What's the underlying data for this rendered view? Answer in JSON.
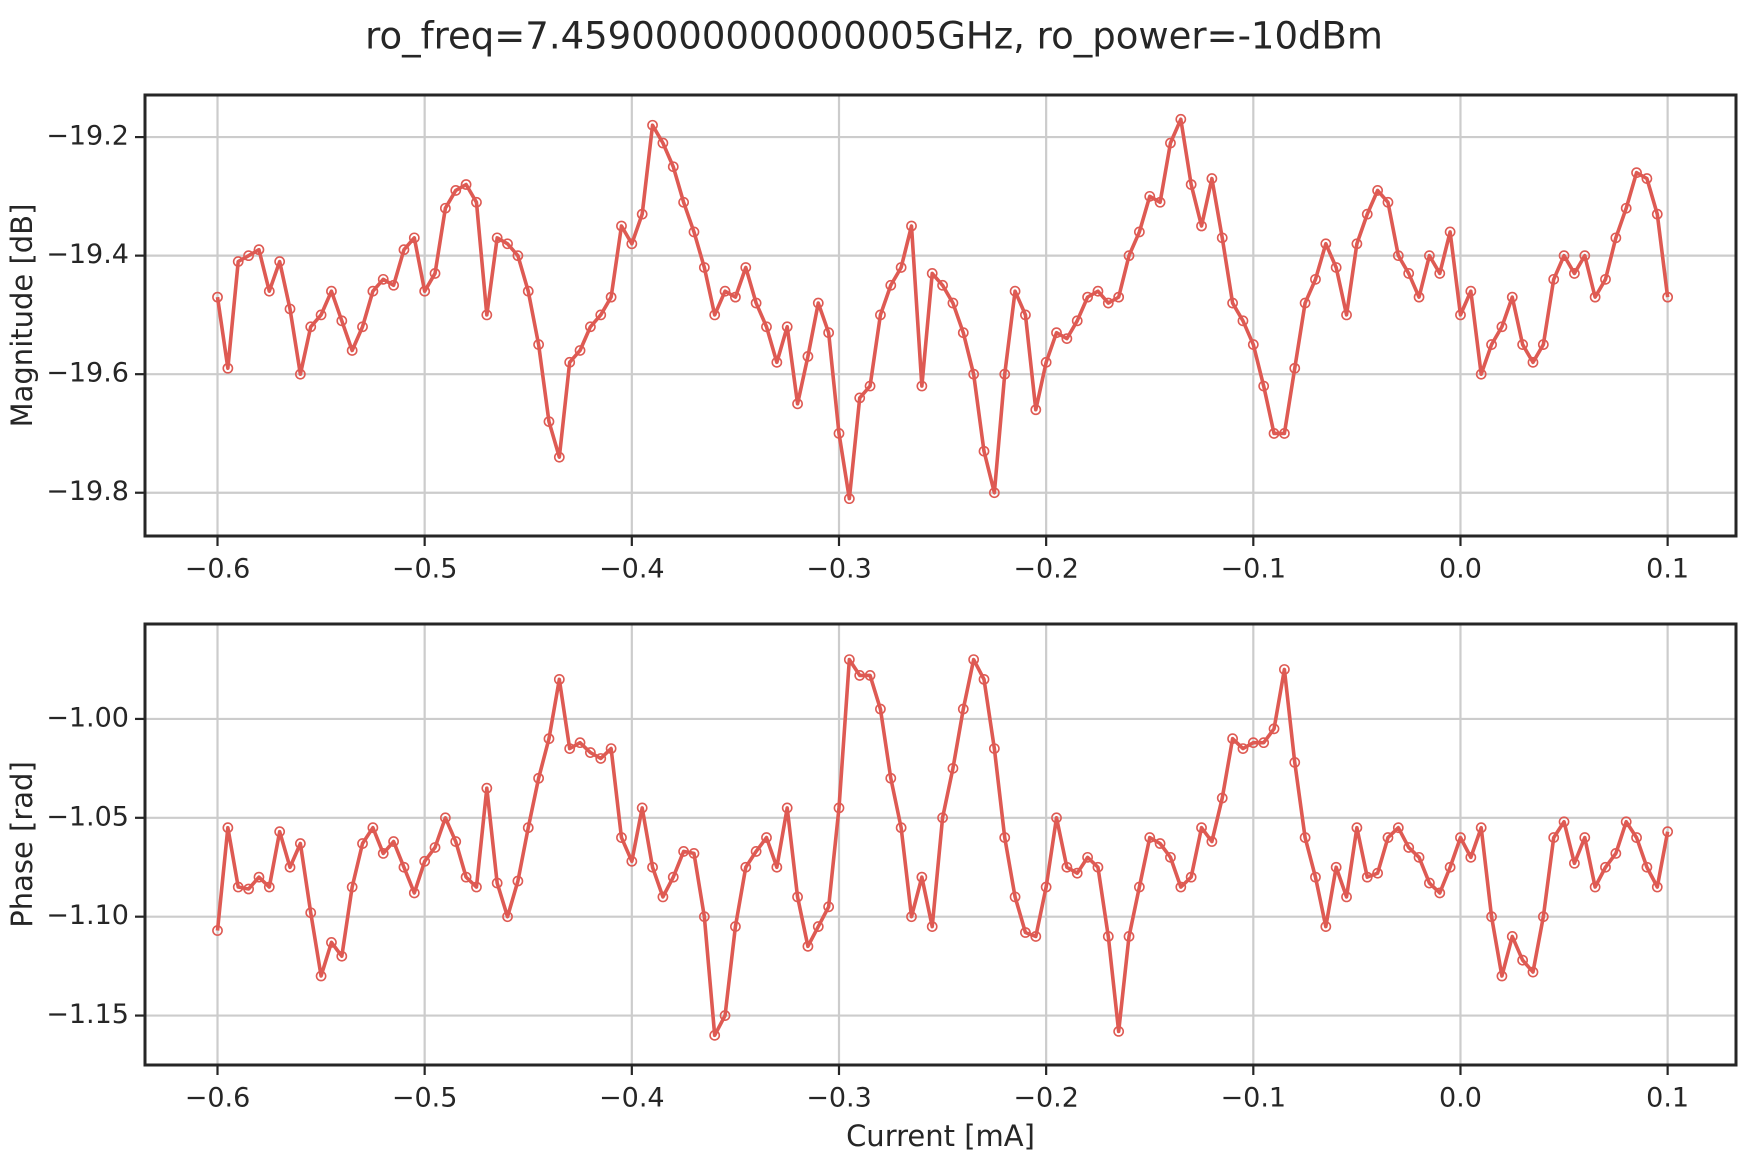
{
  "title": "ro_freq=7.4590000000000005GHz, ro_power=-10dBm",
  "chart_data": [
    {
      "type": "line",
      "ylabel": "Magnitude [dB]",
      "color": "#de5a53",
      "grid": true,
      "marker": "open-circle",
      "xlim": [
        -0.635,
        0.133
      ],
      "ylim": [
        -19.873,
        -19.129
      ],
      "xticks": [
        {
          "value": -0.6,
          "label": "−0.6"
        },
        {
          "value": -0.5,
          "label": "−0.5"
        },
        {
          "value": -0.4,
          "label": "−0.4"
        },
        {
          "value": -0.3,
          "label": "−0.3"
        },
        {
          "value": -0.2,
          "label": "−0.2"
        },
        {
          "value": -0.1,
          "label": "−0.1"
        },
        {
          "value": 0,
          "label": "0.0"
        },
        {
          "value": 0.1,
          "label": "0.1"
        }
      ],
      "yticks": [
        {
          "value": -19.8,
          "label": "−19.8"
        },
        {
          "value": -19.6,
          "label": "−19.6"
        },
        {
          "value": -19.4,
          "label": "−19.4"
        },
        {
          "value": -19.2,
          "label": "−19.2"
        }
      ],
      "x": [
        -0.6,
        -0.595,
        -0.59,
        -0.585,
        -0.58,
        -0.575,
        -0.57,
        -0.565,
        -0.56,
        -0.555,
        -0.55,
        -0.545,
        -0.54,
        -0.535,
        -0.53,
        -0.525,
        -0.52,
        -0.515,
        -0.51,
        -0.505,
        -0.5,
        -0.495,
        -0.49,
        -0.485,
        -0.48,
        -0.475,
        -0.47,
        -0.465,
        -0.46,
        -0.455,
        -0.45,
        -0.445,
        -0.44,
        -0.435,
        -0.43,
        -0.425,
        -0.42,
        -0.415,
        -0.41,
        -0.405,
        -0.4,
        -0.395,
        -0.39,
        -0.385,
        -0.38,
        -0.375,
        -0.37,
        -0.365,
        -0.36,
        -0.355,
        -0.35,
        -0.345,
        -0.34,
        -0.335,
        -0.33,
        -0.325,
        -0.32,
        -0.315,
        -0.31,
        -0.305,
        -0.3,
        -0.295,
        -0.29,
        -0.285,
        -0.28,
        -0.275,
        -0.27,
        -0.265,
        -0.26,
        -0.255,
        -0.25,
        -0.245,
        -0.24,
        -0.235,
        -0.23,
        -0.225,
        -0.22,
        -0.215,
        -0.21,
        -0.205,
        -0.2,
        -0.195,
        -0.19,
        -0.185,
        -0.18,
        -0.175,
        -0.17,
        -0.165,
        -0.16,
        -0.155,
        -0.15,
        -0.145,
        -0.14,
        -0.135,
        -0.13,
        -0.125,
        -0.12,
        -0.115,
        -0.11,
        -0.105,
        -0.1,
        -0.095,
        -0.09,
        -0.085,
        -0.08,
        -0.075,
        -0.07,
        -0.065,
        -0.06,
        -0.055,
        -0.05,
        -0.045,
        -0.04,
        -0.035,
        -0.03,
        -0.025,
        -0.02,
        -0.015,
        -0.01,
        -0.005,
        0,
        0.005,
        0.01,
        0.015,
        0.02,
        0.025,
        0.03,
        0.035,
        0.04,
        0.045,
        0.05,
        0.055,
        0.06,
        0.065,
        0.07,
        0.075,
        0.08,
        0.085,
        0.09,
        0.095,
        0.1
      ],
      "values": [
        -19.47,
        -19.59,
        -19.41,
        -19.4,
        -19.39,
        -19.46,
        -19.41,
        -19.49,
        -19.6,
        -19.52,
        -19.5,
        -19.46,
        -19.51,
        -19.56,
        -19.52,
        -19.46,
        -19.44,
        -19.45,
        -19.39,
        -19.37,
        -19.46,
        -19.43,
        -19.32,
        -19.29,
        -19.28,
        -19.31,
        -19.5,
        -19.37,
        -19.38,
        -19.4,
        -19.46,
        -19.55,
        -19.68,
        -19.74,
        -19.58,
        -19.56,
        -19.52,
        -19.5,
        -19.47,
        -19.35,
        -19.38,
        -19.33,
        -19.18,
        -19.21,
        -19.25,
        -19.31,
        -19.36,
        -19.42,
        -19.5,
        -19.46,
        -19.47,
        -19.42,
        -19.48,
        -19.52,
        -19.58,
        -19.52,
        -19.65,
        -19.57,
        -19.48,
        -19.53,
        -19.7,
        -19.81,
        -19.64,
        -19.62,
        -19.5,
        -19.45,
        -19.42,
        -19.35,
        -19.62,
        -19.43,
        -19.45,
        -19.48,
        -19.53,
        -19.6,
        -19.73,
        -19.8,
        -19.6,
        -19.46,
        -19.5,
        -19.66,
        -19.58,
        -19.53,
        -19.54,
        -19.51,
        -19.47,
        -19.46,
        -19.48,
        -19.47,
        -19.4,
        -19.36,
        -19.3,
        -19.31,
        -19.21,
        -19.17,
        -19.28,
        -19.35,
        -19.27,
        -19.37,
        -19.48,
        -19.51,
        -19.55,
        -19.62,
        -19.7,
        -19.7,
        -19.59,
        -19.48,
        -19.44,
        -19.38,
        -19.42,
        -19.5,
        -19.38,
        -19.33,
        -19.29,
        -19.31,
        -19.4,
        -19.43,
        -19.47,
        -19.4,
        -19.43,
        -19.36,
        -19.5,
        -19.46,
        -19.6,
        -19.55,
        -19.52,
        -19.47,
        -19.55,
        -19.58,
        -19.55,
        -19.44,
        -19.4,
        -19.43,
        -19.4,
        -19.47,
        -19.44,
        -19.37,
        -19.32,
        -19.26,
        -19.27,
        -19.33,
        -19.47
      ]
    },
    {
      "type": "line",
      "ylabel": "Phase [rad]",
      "xlabel": "Current [mA]",
      "color": "#de5a53",
      "grid": true,
      "marker": "open-circle",
      "xlim": [
        -0.635,
        0.133
      ],
      "ylim": [
        -1.175,
        -0.952
      ],
      "xticks": [
        {
          "value": -0.6,
          "label": "−0.6"
        },
        {
          "value": -0.5,
          "label": "−0.5"
        },
        {
          "value": -0.4,
          "label": "−0.4"
        },
        {
          "value": -0.3,
          "label": "−0.3"
        },
        {
          "value": -0.2,
          "label": "−0.2"
        },
        {
          "value": -0.1,
          "label": "−0.1"
        },
        {
          "value": 0,
          "label": "0.0"
        },
        {
          "value": 0.1,
          "label": "0.1"
        }
      ],
      "yticks": [
        {
          "value": -1.15,
          "label": "−1.15"
        },
        {
          "value": -1.1,
          "label": "−1.10"
        },
        {
          "value": -1.05,
          "label": "−1.05"
        },
        {
          "value": -1,
          "label": "−1.00"
        }
      ],
      "x": [
        -0.6,
        -0.595,
        -0.59,
        -0.585,
        -0.58,
        -0.575,
        -0.57,
        -0.565,
        -0.56,
        -0.555,
        -0.55,
        -0.545,
        -0.54,
        -0.535,
        -0.53,
        -0.525,
        -0.52,
        -0.515,
        -0.51,
        -0.505,
        -0.5,
        -0.495,
        -0.49,
        -0.485,
        -0.48,
        -0.475,
        -0.47,
        -0.465,
        -0.46,
        -0.455,
        -0.45,
        -0.445,
        -0.44,
        -0.435,
        -0.43,
        -0.425,
        -0.42,
        -0.415,
        -0.41,
        -0.405,
        -0.4,
        -0.395,
        -0.39,
        -0.385,
        -0.38,
        -0.375,
        -0.37,
        -0.365,
        -0.36,
        -0.355,
        -0.35,
        -0.345,
        -0.34,
        -0.335,
        -0.33,
        -0.325,
        -0.32,
        -0.315,
        -0.31,
        -0.305,
        -0.3,
        -0.295,
        -0.29,
        -0.285,
        -0.28,
        -0.275,
        -0.27,
        -0.265,
        -0.26,
        -0.255,
        -0.25,
        -0.245,
        -0.24,
        -0.235,
        -0.23,
        -0.225,
        -0.22,
        -0.215,
        -0.21,
        -0.205,
        -0.2,
        -0.195,
        -0.19,
        -0.185,
        -0.18,
        -0.175,
        -0.17,
        -0.165,
        -0.16,
        -0.155,
        -0.15,
        -0.145,
        -0.14,
        -0.135,
        -0.13,
        -0.125,
        -0.12,
        -0.115,
        -0.11,
        -0.105,
        -0.1,
        -0.095,
        -0.09,
        -0.085,
        -0.08,
        -0.075,
        -0.07,
        -0.065,
        -0.06,
        -0.055,
        -0.05,
        -0.045,
        -0.04,
        -0.035,
        -0.03,
        -0.025,
        -0.02,
        -0.015,
        -0.01,
        -0.005,
        0,
        0.005,
        0.01,
        0.015,
        0.02,
        0.025,
        0.03,
        0.035,
        0.04,
        0.045,
        0.05,
        0.055,
        0.06,
        0.065,
        0.07,
        0.075,
        0.08,
        0.085,
        0.09,
        0.095,
        0.1
      ],
      "values": [
        -1.107,
        -1.055,
        -1.085,
        -1.086,
        -1.08,
        -1.085,
        -1.057,
        -1.075,
        -1.063,
        -1.098,
        -1.13,
        -1.113,
        -1.12,
        -1.085,
        -1.063,
        -1.055,
        -1.068,
        -1.062,
        -1.075,
        -1.088,
        -1.072,
        -1.065,
        -1.05,
        -1.062,
        -1.08,
        -1.085,
        -1.035,
        -1.083,
        -1.1,
        -1.082,
        -1.055,
        -1.03,
        -1.01,
        -0.98,
        -1.015,
        -1.012,
        -1.017,
        -1.02,
        -1.015,
        -1.06,
        -1.072,
        -1.045,
        -1.075,
        -1.09,
        -1.08,
        -1.067,
        -1.068,
        -1.1,
        -1.16,
        -1.15,
        -1.105,
        -1.075,
        -1.067,
        -1.06,
        -1.075,
        -1.045,
        -1.09,
        -1.115,
        -1.105,
        -1.095,
        -1.045,
        -0.97,
        -0.978,
        -0.978,
        -0.995,
        -1.03,
        -1.055,
        -1.1,
        -1.08,
        -1.105,
        -1.05,
        -1.025,
        -0.995,
        -0.97,
        -0.98,
        -1.015,
        -1.06,
        -1.09,
        -1.108,
        -1.11,
        -1.085,
        -1.05,
        -1.075,
        -1.078,
        -1.07,
        -1.075,
        -1.11,
        -1.158,
        -1.11,
        -1.085,
        -1.06,
        -1.063,
        -1.07,
        -1.085,
        -1.08,
        -1.055,
        -1.062,
        -1.04,
        -1.01,
        -1.015,
        -1.012,
        -1.012,
        -1.005,
        -0.975,
        -1.022,
        -1.06,
        -1.08,
        -1.105,
        -1.075,
        -1.09,
        -1.055,
        -1.08,
        -1.078,
        -1.06,
        -1.055,
        -1.065,
        -1.07,
        -1.083,
        -1.088,
        -1.075,
        -1.06,
        -1.07,
        -1.055,
        -1.1,
        -1.13,
        -1.11,
        -1.122,
        -1.128,
        -1.1,
        -1.06,
        -1.052,
        -1.073,
        -1.06,
        -1.085,
        -1.075,
        -1.068,
        -1.052,
        -1.06,
        -1.075,
        -1.085,
        -1.057
      ]
    }
  ]
}
